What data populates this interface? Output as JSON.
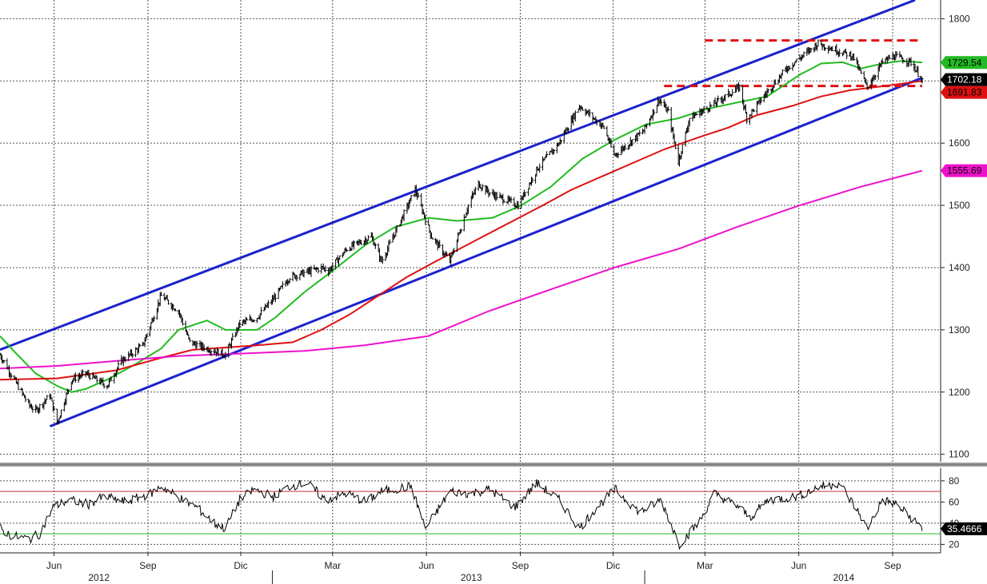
{
  "chart_data": [
    {
      "type": "line",
      "title": "",
      "xlabel": "",
      "ylabel": "",
      "x_range": [
        "2012-04-09",
        "2014-09-30"
      ],
      "ylim": [
        1088,
        1830
      ],
      "y_ticks": [
        "1100",
        "1200",
        "1300",
        "1400",
        "1500",
        "1600",
        "1700",
        "1800"
      ],
      "x_month_ticks": [
        {
          "date": "2012-06-01",
          "label": "Jun"
        },
        {
          "date": "2012-09-01",
          "label": "Sep"
        },
        {
          "date": "2012-12-01",
          "label": "Dic"
        },
        {
          "date": "2013-03-01",
          "label": "Mar"
        },
        {
          "date": "2013-06-01",
          "label": "Jun"
        },
        {
          "date": "2013-09-01",
          "label": "Sep"
        },
        {
          "date": "2013-12-01",
          "label": "Dic"
        },
        {
          "date": "2014-03-01",
          "label": "Mar"
        },
        {
          "date": "2014-06-01",
          "label": "Jun"
        },
        {
          "date": "2014-09-01",
          "label": "Sep"
        }
      ],
      "x_year_labels": [
        {
          "date": "2012-07-15",
          "label": "2012"
        },
        {
          "date": "2013-07-15",
          "label": "2013"
        },
        {
          "date": "2014-07-15",
          "label": "2014"
        }
      ],
      "grid": true,
      "series": [
        {
          "role": "price",
          "style": "ohlc-bars",
          "color": "#000000",
          "x": [
            "2012-04-09",
            "2012-04-23",
            "2012-05-07",
            "2012-05-14",
            "2012-05-28",
            "2012-06-04",
            "2012-06-18",
            "2012-07-02",
            "2012-07-23",
            "2012-08-06",
            "2012-08-27",
            "2012-09-14",
            "2012-10-01",
            "2012-10-12",
            "2012-10-29",
            "2012-11-16",
            "2012-11-30",
            "2012-12-17",
            "2013-01-02",
            "2013-01-18",
            "2013-02-19",
            "2013-02-25",
            "2013-03-15",
            "2013-04-08",
            "2013-04-18",
            "2013-05-21",
            "2013-06-06",
            "2013-06-24",
            "2013-07-12",
            "2013-07-22",
            "2013-08-02",
            "2013-08-30",
            "2013-09-18",
            "2013-10-09",
            "2013-10-29",
            "2013-11-22",
            "2013-12-02",
            "2013-12-31",
            "2014-01-15",
            "2014-01-24",
            "2014-02-03",
            "2014-02-14",
            "2014-03-07",
            "2014-04-04",
            "2014-04-11",
            "2014-04-30",
            "2014-05-20",
            "2014-06-20",
            "2014-07-24",
            "2014-08-07",
            "2014-08-22",
            "2014-09-02",
            "2014-09-19",
            "2014-09-30"
          ],
          "values": [
            1260,
            1220,
            1180,
            1170,
            1195,
            1150,
            1220,
            1230,
            1210,
            1250,
            1275,
            1355,
            1330,
            1280,
            1270,
            1260,
            1310,
            1320,
            1350,
            1385,
            1400,
            1395,
            1430,
            1450,
            1410,
            1525,
            1450,
            1410,
            1500,
            1535,
            1520,
            1500,
            1560,
            1600,
            1660,
            1625,
            1580,
            1620,
            1670,
            1650,
            1570,
            1640,
            1660,
            1690,
            1640,
            1680,
            1720,
            1760,
            1740,
            1690,
            1730,
            1740,
            1730,
            1702
          ]
        },
        {
          "role": "moving-average",
          "color": "#22bb22",
          "x": [
            "2012-04-09",
            "2012-04-23",
            "2012-05-14",
            "2012-06-04",
            "2012-06-18",
            "2012-07-02",
            "2012-07-23",
            "2012-08-20",
            "2012-09-14",
            "2012-10-01",
            "2012-10-29",
            "2012-11-16",
            "2012-12-17",
            "2013-01-04",
            "2013-02-01",
            "2013-03-01",
            "2013-04-01",
            "2013-05-01",
            "2013-06-03",
            "2013-07-01",
            "2013-08-05",
            "2013-09-02",
            "2013-10-01",
            "2013-11-01",
            "2013-12-02",
            "2014-01-02",
            "2014-02-03",
            "2014-03-03",
            "2014-04-01",
            "2014-05-01",
            "2014-06-02",
            "2014-06-23",
            "2014-07-14",
            "2014-08-01",
            "2014-08-22",
            "2014-09-10",
            "2014-09-30"
          ],
          "values": [
            1290,
            1265,
            1230,
            1210,
            1200,
            1205,
            1220,
            1245,
            1270,
            1300,
            1315,
            1300,
            1300,
            1320,
            1360,
            1395,
            1435,
            1465,
            1480,
            1475,
            1480,
            1500,
            1530,
            1575,
            1605,
            1630,
            1640,
            1655,
            1665,
            1675,
            1710,
            1728,
            1730,
            1720,
            1728,
            1732,
            1729.54
          ]
        },
        {
          "role": "moving-average",
          "color": "#dd1111",
          "x": [
            "2012-04-09",
            "2012-06-04",
            "2012-08-01",
            "2012-09-14",
            "2012-10-15",
            "2012-11-19",
            "2012-12-17",
            "2013-01-21",
            "2013-02-18",
            "2013-03-18",
            "2013-04-15",
            "2013-05-13",
            "2013-06-10",
            "2013-07-15",
            "2013-08-19",
            "2013-09-23",
            "2013-10-21",
            "2013-11-25",
            "2013-12-23",
            "2014-01-20",
            "2014-02-24",
            "2014-03-24",
            "2014-04-21",
            "2014-05-26",
            "2014-06-23",
            "2014-07-21",
            "2014-08-25",
            "2014-09-30"
          ],
          "values": [
            1220,
            1222,
            1235,
            1255,
            1268,
            1272,
            1275,
            1280,
            1300,
            1325,
            1355,
            1385,
            1410,
            1440,
            1470,
            1500,
            1525,
            1550,
            1570,
            1590,
            1610,
            1625,
            1645,
            1660,
            1675,
            1685,
            1692,
            1700
          ]
        },
        {
          "role": "moving-average",
          "color": "#ee11cc",
          "x": [
            "2012-04-09",
            "2012-06-04",
            "2012-08-01",
            "2012-10-01",
            "2012-12-03",
            "2013-02-01",
            "2013-04-01",
            "2013-06-03",
            "2013-08-01",
            "2013-10-01",
            "2013-12-02",
            "2014-02-03",
            "2014-04-01",
            "2014-06-02",
            "2014-08-01",
            "2014-09-30"
          ],
          "values": [
            1238,
            1242,
            1250,
            1258,
            1262,
            1266,
            1275,
            1290,
            1330,
            1365,
            1400,
            1430,
            1465,
            1500,
            1530,
            1555.69
          ]
        }
      ],
      "trend_lines": [
        {
          "role": "channel-upper",
          "color": "#1a22cc",
          "style": "solid",
          "from": {
            "x": "2012-04-09",
            "y": 1268
          },
          "to": {
            "x": "2014-09-23",
            "y": 1830
          }
        },
        {
          "role": "channel-lower",
          "color": "#1a22cc",
          "style": "solid",
          "from": {
            "x": "2012-05-28",
            "y": 1145
          },
          "to": {
            "x": "2014-09-30",
            "y": 1705
          }
        },
        {
          "role": "resistance",
          "color": "#dd1111",
          "style": "dashed",
          "from": {
            "x": "2014-03-01",
            "y": 1765
          },
          "to": {
            "x": "2014-09-30",
            "y": 1765
          }
        },
        {
          "role": "support",
          "color": "#dd1111",
          "style": "dashed",
          "from": {
            "x": "2014-01-20",
            "y": 1691.83
          },
          "to": {
            "x": "2014-09-30",
            "y": 1691.83
          }
        }
      ],
      "value_tags": [
        {
          "text": "1729.54",
          "y": 1729.54,
          "bg": "#22bb22",
          "fg": "#000000"
        },
        {
          "text": "1702.18",
          "y": 1702.18,
          "bg": "#000000",
          "fg": "#ffffff"
        },
        {
          "text": "1691.83",
          "y": 1691.83,
          "bg": "#dd1111",
          "fg": "#000000"
        },
        {
          "text": "1555.69",
          "y": 1555.69,
          "bg": "#ee11cc",
          "fg": "#000000"
        }
      ]
    },
    {
      "type": "line",
      "title": "",
      "xlabel": "",
      "ylabel": "",
      "ylim": [
        12,
        92
      ],
      "y_ticks": [
        "20",
        "40",
        "60",
        "80"
      ],
      "overbought_level": 70,
      "oversold_level": 30,
      "overbought_color": "#cc3333",
      "oversold_color": "#22bb22",
      "series": [
        {
          "role": "oscillator",
          "color": "#000000",
          "x": [
            "2012-04-09",
            "2012-04-20",
            "2012-05-08",
            "2012-05-18",
            "2012-05-31",
            "2012-06-15",
            "2012-07-05",
            "2012-07-20",
            "2012-08-10",
            "2012-09-04",
            "2012-09-14",
            "2012-10-05",
            "2012-10-19",
            "2012-11-05",
            "2012-11-16",
            "2012-11-30",
            "2012-12-14",
            "2013-01-02",
            "2013-01-18",
            "2013-02-04",
            "2013-02-22",
            "2013-03-15",
            "2013-04-03",
            "2013-04-18",
            "2013-05-17",
            "2013-05-31",
            "2013-06-24",
            "2013-07-15",
            "2013-08-02",
            "2013-08-27",
            "2013-09-17",
            "2013-10-09",
            "2013-10-29",
            "2013-11-15",
            "2013-12-03",
            "2013-12-27",
            "2014-01-17",
            "2014-02-04",
            "2014-02-24",
            "2014-03-10",
            "2014-04-04",
            "2014-04-14",
            "2014-05-02",
            "2014-05-30",
            "2014-06-20",
            "2014-07-11",
            "2014-07-31",
            "2014-08-07",
            "2014-08-22",
            "2014-09-04",
            "2014-09-19",
            "2014-09-30"
          ],
          "values": [
            35,
            28,
            25,
            30,
            55,
            62,
            58,
            65,
            60,
            68,
            75,
            62,
            55,
            40,
            35,
            62,
            72,
            65,
            75,
            78,
            62,
            68,
            60,
            70,
            75,
            35,
            70,
            68,
            72,
            55,
            78,
            62,
            35,
            55,
            72,
            50,
            62,
            20,
            42,
            68,
            55,
            45,
            62,
            65,
            74,
            78,
            48,
            35,
            62,
            58,
            45,
            35.47
          ]
        }
      ],
      "value_tags": [
        {
          "text": "35.4666",
          "y": 35.47,
          "bg": "#000000",
          "fg": "#ffffff"
        }
      ]
    }
  ]
}
